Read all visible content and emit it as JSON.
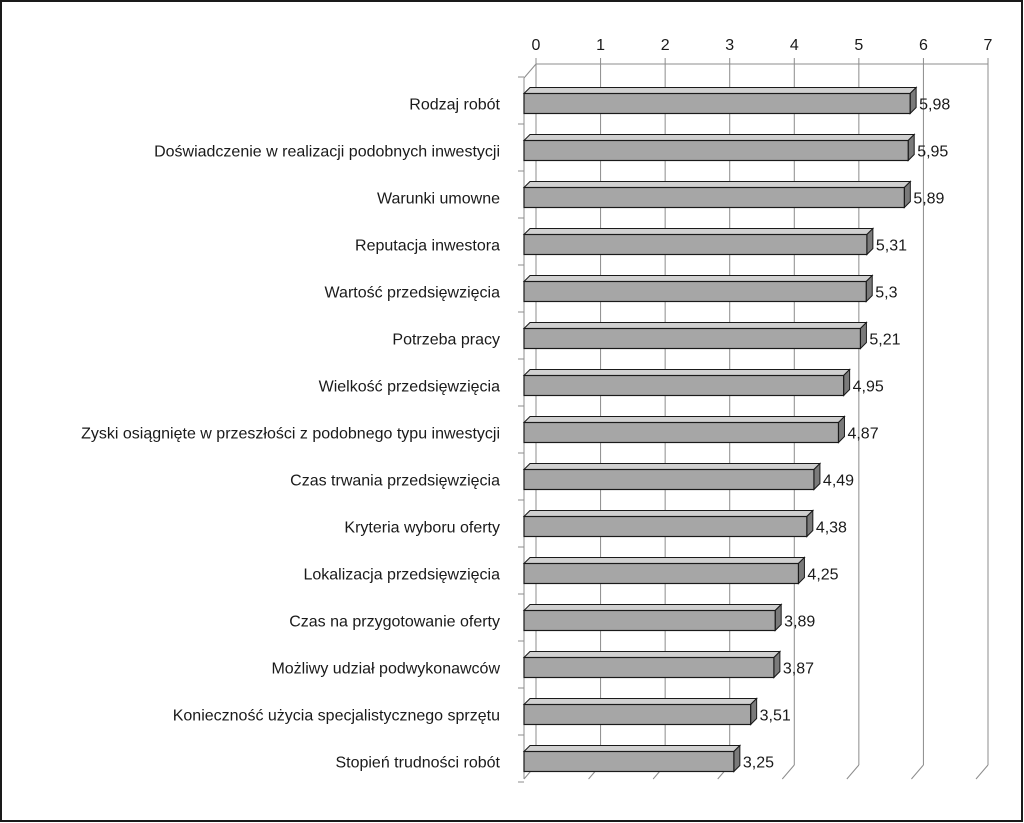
{
  "chart_data": {
    "type": "bar",
    "orientation": "horizontal",
    "style": "3d",
    "title": "",
    "xlabel": "",
    "ylabel": "",
    "xlim": [
      0,
      7
    ],
    "x_ticks": [
      "0",
      "1",
      "2",
      "3",
      "4",
      "5",
      "6",
      "7"
    ],
    "x_axis_position": "top",
    "grid": true,
    "legend": "none",
    "categories": [
      "Rodzaj robót",
      "Doświadczenie w realizacji podobnych inwestycji",
      "Warunki umowne",
      "Reputacja inwestora",
      "Wartość przedsięwzięcia",
      "Potrzeba pracy",
      "Wielkość przedsięwzięcia",
      "Zyski osiągnięte w przeszłości z podobnego typu inwestycji",
      "Czas trwania przedsięwzięcia",
      "Kryteria wyboru oferty",
      "Lokalizacja przedsięwzięcia",
      "Czas na przygotowanie oferty",
      "Możliwy udział podwykonawców",
      "Konieczność użycia specjalistycznego sprzętu",
      "Stopień trudności robót"
    ],
    "values": [
      5.98,
      5.95,
      5.89,
      5.31,
      5.3,
      5.21,
      4.95,
      4.87,
      4.49,
      4.38,
      4.25,
      3.89,
      3.87,
      3.51,
      3.25
    ],
    "value_labels": [
      "5,98",
      "5,95",
      "5,89",
      "5,31",
      "5,3",
      "5,21",
      "4,95",
      "4,87",
      "4,49",
      "4,38",
      "4,25",
      "3,89",
      "3,87",
      "3,51",
      "3,25"
    ],
    "colors": {
      "bar_face": "#a6a6a6",
      "bar_top": "#d0d0d0",
      "bar_side": "#7a7a7a",
      "bar_outline": "#1a1a1a",
      "grid": "#8c8c8c",
      "frame": "#1a1a1a"
    }
  }
}
